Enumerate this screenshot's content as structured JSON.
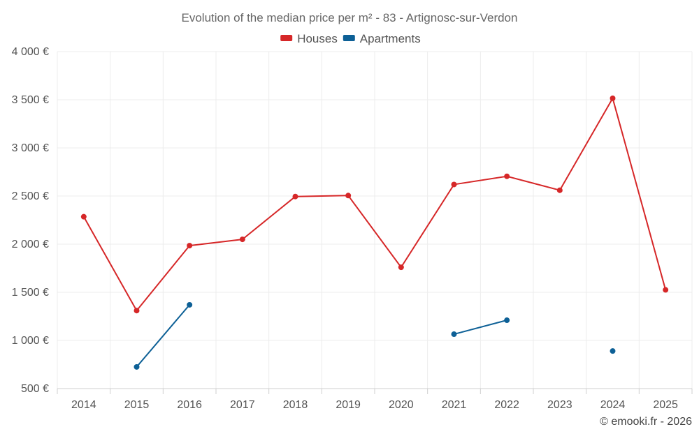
{
  "chart_data": {
    "type": "line",
    "title": "Evolution of the median price per m² - 83 - Artignosc-sur-Verdon",
    "categories": [
      "2014",
      "2015",
      "2016",
      "2017",
      "2018",
      "2019",
      "2020",
      "2021",
      "2022",
      "2023",
      "2024",
      "2025"
    ],
    "series": [
      {
        "name": "Houses",
        "color": "#d62728",
        "values": [
          2285,
          1310,
          1985,
          2050,
          2495,
          2505,
          1760,
          2620,
          2705,
          2560,
          3515,
          1525
        ]
      },
      {
        "name": "Apartments",
        "color": "#0d6096",
        "values": [
          null,
          725,
          1370,
          null,
          null,
          null,
          null,
          1065,
          1210,
          null,
          890,
          null
        ]
      }
    ],
    "ylim": [
      500,
      4000
    ],
    "yticks": [
      500,
      1000,
      1500,
      2000,
      2500,
      3000,
      3500,
      4000
    ],
    "ytick_labels": [
      "500 €",
      "1 000 €",
      "1 500 €",
      "2 000 €",
      "2 500 €",
      "3 000 €",
      "3 500 €",
      "4 000 €"
    ],
    "xlabel": "",
    "ylabel": "",
    "grid": true,
    "legend_position": "top-center",
    "credit": "© emooki.fr - 2026"
  }
}
